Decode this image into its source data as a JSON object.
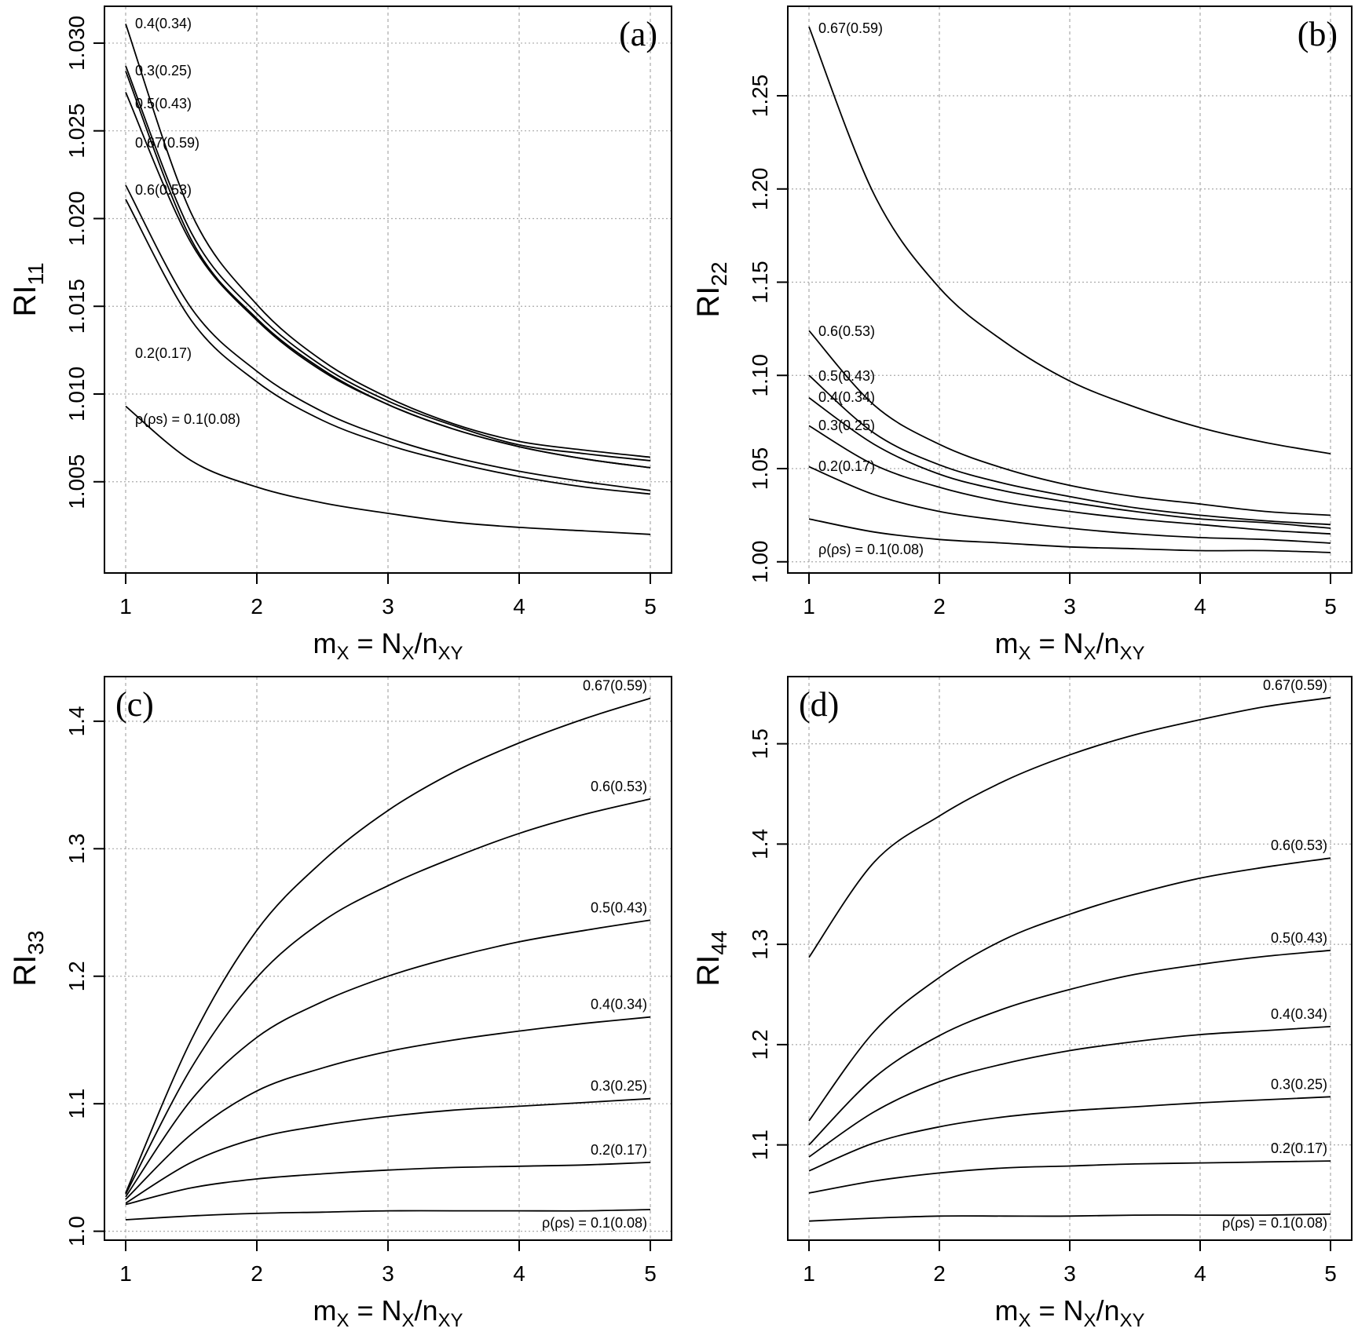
{
  "chart_data": [
    {
      "type": "line",
      "panel_tag": "(a)",
      "ylabel_main": "RI",
      "ylabel_sub": "11",
      "xlabel_parts": {
        "m": "m",
        "m_sub": "X",
        "eq": " = ",
        "N": "N",
        "N_sub": "X",
        "slash": "/",
        "n": "n",
        "n_sub": "XY"
      },
      "xlim": [
        1,
        5
      ],
      "ylim": [
        0.9998,
        1.0321
      ],
      "x_ticks": [
        "1",
        "2",
        "3",
        "4",
        "5"
      ],
      "y_ticks": [
        "1.005",
        "1.010",
        "1.015",
        "1.020",
        "1.025",
        "1.030"
      ],
      "y_tick_values": [
        1.005,
        1.01,
        1.015,
        1.02,
        1.025,
        1.03
      ],
      "grid": true,
      "label_side": "left",
      "x": [
        1,
        1.5,
        2,
        2.5,
        3,
        3.5,
        4,
        4.5,
        5
      ],
      "series": [
        {
          "name": "0.4(0.34)",
          "label": "0.4(0.34)",
          "values": [
            1.0311,
            1.0203,
            1.0151,
            1.0119,
            1.0098,
            1.0083,
            1.0073,
            1.0068,
            1.0064
          ]
        },
        {
          "name": "0.3(0.25)",
          "label": "0.3(0.25)",
          "values": [
            1.0287,
            1.0192,
            1.0146,
            1.0116,
            1.0096,
            1.0082,
            1.0071,
            1.0066,
            1.0062
          ]
        },
        {
          "name": "0.5(0.43)",
          "label": "0.5(0.43)",
          "values": [
            1.0284,
            1.0188,
            1.0143,
            1.0114,
            1.0094,
            1.008,
            1.007,
            1.0063,
            1.0058
          ]
        },
        {
          "name": "0.67(0.59)",
          "label": "0.67(0.59)",
          "values": [
            1.0272,
            1.0186,
            1.0142,
            1.0113,
            1.0094,
            1.008,
            1.007,
            1.0063,
            1.0058
          ]
        },
        {
          "name": "0.6(0.53)",
          "label": "0.6(0.53)",
          "values": [
            1.0219,
            1.0149,
            1.0113,
            1.009,
            1.0075,
            1.0064,
            1.0056,
            1.005,
            1.0045
          ]
        },
        {
          "name": "0.2(0.17)",
          "label": "0.2(0.17)",
          "values": [
            1.0211,
            1.0142,
            1.0107,
            1.0085,
            1.0071,
            1.0061,
            1.0053,
            1.0047,
            1.0043
          ]
        },
        {
          "name": "0.1(0.08)",
          "label": "ρ(ρs) = 0.1(0.08)",
          "values": [
            1.0093,
            1.0062,
            1.0047,
            1.0038,
            1.0032,
            1.0027,
            1.0024,
            1.0022,
            1.002
          ]
        }
      ]
    },
    {
      "type": "line",
      "panel_tag": "(b)",
      "ylabel_main": "RI",
      "ylabel_sub": "22",
      "xlabel_parts": {
        "m": "m",
        "m_sub": "X",
        "eq": " = ",
        "N": "N",
        "N_sub": "X",
        "slash": "/",
        "n": "n",
        "n_sub": "XY"
      },
      "xlim": [
        1,
        5
      ],
      "ylim": [
        0.994,
        1.298
      ],
      "x_ticks": [
        "1",
        "2",
        "3",
        "4",
        "5"
      ],
      "y_ticks": [
        "1.00",
        "1.05",
        "1.10",
        "1.15",
        "1.20",
        "1.25"
      ],
      "y_tick_values": [
        1.0,
        1.05,
        1.1,
        1.15,
        1.2,
        1.25
      ],
      "grid": true,
      "label_side": "left",
      "x": [
        1,
        1.5,
        2,
        2.5,
        3,
        3.5,
        4,
        4.5,
        5
      ],
      "series": [
        {
          "name": "0.67(0.59)",
          "label": "0.67(0.59)",
          "values": [
            1.287,
            1.197,
            1.147,
            1.118,
            1.097,
            1.083,
            1.072,
            1.064,
            1.058
          ]
        },
        {
          "name": "0.6(0.53)",
          "label": "0.6(0.53)",
          "values": [
            1.124,
            1.084,
            1.063,
            1.05,
            1.041,
            1.035,
            1.031,
            1.027,
            1.025
          ]
        },
        {
          "name": "0.5(0.43)",
          "label": "0.5(0.43)",
          "values": [
            1.1,
            1.069,
            1.052,
            1.042,
            1.035,
            1.029,
            1.025,
            1.022,
            1.02
          ]
        },
        {
          "name": "0.4(0.34)",
          "label": "0.4(0.34)",
          "values": [
            1.088,
            1.063,
            1.047,
            1.038,
            1.032,
            1.027,
            1.023,
            1.021,
            1.018
          ]
        },
        {
          "name": "0.3(0.25)",
          "label": "0.3(0.25)",
          "values": [
            1.073,
            1.052,
            1.04,
            1.032,
            1.027,
            1.023,
            1.02,
            1.017,
            1.015
          ]
        },
        {
          "name": "0.2(0.17)",
          "label": "0.2(0.17)",
          "values": [
            1.051,
            1.036,
            1.027,
            1.022,
            1.018,
            1.015,
            1.013,
            1.012,
            1.01
          ]
        },
        {
          "name": "0.1(0.08)",
          "label": "ρ(ρs) = 0.1(0.08)",
          "values": [
            1.023,
            1.016,
            1.012,
            1.01,
            1.008,
            1.007,
            1.006,
            1.006,
            1.005
          ]
        }
      ]
    },
    {
      "type": "line",
      "panel_tag": "(c)",
      "ylabel_main": "RI",
      "ylabel_sub": "33",
      "xlabel_parts": {
        "m": "m",
        "m_sub": "X",
        "eq": " = ",
        "N": "N",
        "N_sub": "X",
        "slash": "/",
        "n": "n",
        "n_sub": "XY"
      },
      "xlim": [
        1,
        5
      ],
      "ylim": [
        0.993,
        1.435
      ],
      "x_ticks": [
        "1",
        "2",
        "3",
        "4",
        "5"
      ],
      "y_ticks": [
        "1.0",
        "1.1",
        "1.2",
        "1.3",
        "1.4"
      ],
      "y_tick_values": [
        1.0,
        1.1,
        1.2,
        1.3,
        1.4
      ],
      "grid": true,
      "label_side": "right",
      "x": [
        1,
        1.5,
        2,
        2.5,
        3,
        3.5,
        4,
        4.5,
        5
      ],
      "series": [
        {
          "name": "0.67(0.59)",
          "label": "0.67(0.59)",
          "values": [
            1.03,
            1.15,
            1.236,
            1.29,
            1.33,
            1.36,
            1.383,
            1.402,
            1.418
          ]
        },
        {
          "name": "0.6(0.53)",
          "label": "0.6(0.53)",
          "values": [
            1.029,
            1.128,
            1.199,
            1.243,
            1.271,
            1.293,
            1.312,
            1.327,
            1.339
          ]
        },
        {
          "name": "0.5(0.43)",
          "label": "0.5(0.43)",
          "values": [
            1.027,
            1.103,
            1.152,
            1.18,
            1.2,
            1.215,
            1.227,
            1.236,
            1.244
          ]
        },
        {
          "name": "0.4(0.34)",
          "label": "0.4(0.34)",
          "values": [
            1.025,
            1.076,
            1.11,
            1.128,
            1.141,
            1.15,
            1.157,
            1.163,
            1.168
          ]
        },
        {
          "name": "0.3(0.25)",
          "label": "0.3(0.25)",
          "values": [
            1.022,
            1.054,
            1.073,
            1.083,
            1.09,
            1.095,
            1.098,
            1.101,
            1.104
          ]
        },
        {
          "name": "0.2(0.17)",
          "label": "0.2(0.17)",
          "values": [
            1.021,
            1.034,
            1.041,
            1.045,
            1.048,
            1.05,
            1.051,
            1.052,
            1.054
          ]
        },
        {
          "name": "0.1(0.08)",
          "label": "ρ(ρs) = 0.1(0.08)",
          "values": [
            1.009,
            1.012,
            1.014,
            1.015,
            1.016,
            1.016,
            1.016,
            1.016,
            1.017
          ]
        }
      ]
    },
    {
      "type": "line",
      "panel_tag": "(d)",
      "ylabel_main": "RI",
      "ylabel_sub": "44",
      "xlabel_parts": {
        "m": "m",
        "m_sub": "X",
        "eq": " = ",
        "N": "N",
        "N_sub": "X",
        "slash": "/",
        "n": "n",
        "n_sub": "XY"
      },
      "xlim": [
        1,
        5
      ],
      "ylim": [
        1.005,
        1.567
      ],
      "x_ticks": [
        "1",
        "2",
        "3",
        "4",
        "5"
      ],
      "y_ticks": [
        "1.1",
        "1.2",
        "1.3",
        "1.4",
        "1.5"
      ],
      "y_tick_values": [
        1.1,
        1.2,
        1.3,
        1.4,
        1.5
      ],
      "grid": true,
      "label_side": "right",
      "x": [
        1,
        1.5,
        2,
        2.5,
        3,
        3.5,
        4,
        4.5,
        5
      ],
      "series": [
        {
          "name": "0.67(0.59)",
          "label": "0.67(0.59)",
          "values": [
            1.287,
            1.382,
            1.428,
            1.463,
            1.489,
            1.509,
            1.524,
            1.537,
            1.546
          ]
        },
        {
          "name": "0.6(0.53)",
          "label": "0.6(0.53)",
          "values": [
            1.124,
            1.213,
            1.267,
            1.305,
            1.33,
            1.35,
            1.366,
            1.377,
            1.386
          ]
        },
        {
          "name": "0.5(0.43)",
          "label": "0.5(0.43)",
          "values": [
            1.1,
            1.167,
            1.209,
            1.236,
            1.255,
            1.27,
            1.28,
            1.288,
            1.294
          ]
        },
        {
          "name": "0.4(0.34)",
          "label": "0.4(0.34)",
          "values": [
            1.088,
            1.133,
            1.163,
            1.181,
            1.194,
            1.203,
            1.21,
            1.214,
            1.218
          ]
        },
        {
          "name": "0.3(0.25)",
          "label": "0.3(0.25)",
          "values": [
            1.074,
            1.102,
            1.118,
            1.128,
            1.134,
            1.138,
            1.142,
            1.145,
            1.148
          ]
        },
        {
          "name": "0.2(0.17)",
          "label": "0.2(0.17)",
          "values": [
            1.052,
            1.064,
            1.072,
            1.077,
            1.079,
            1.081,
            1.082,
            1.083,
            1.084
          ]
        },
        {
          "name": "0.1(0.08)",
          "label": "ρ(ρs) = 0.1(0.08)",
          "values": [
            1.024,
            1.027,
            1.029,
            1.029,
            1.029,
            1.03,
            1.03,
            1.03,
            1.031
          ]
        }
      ]
    }
  ]
}
